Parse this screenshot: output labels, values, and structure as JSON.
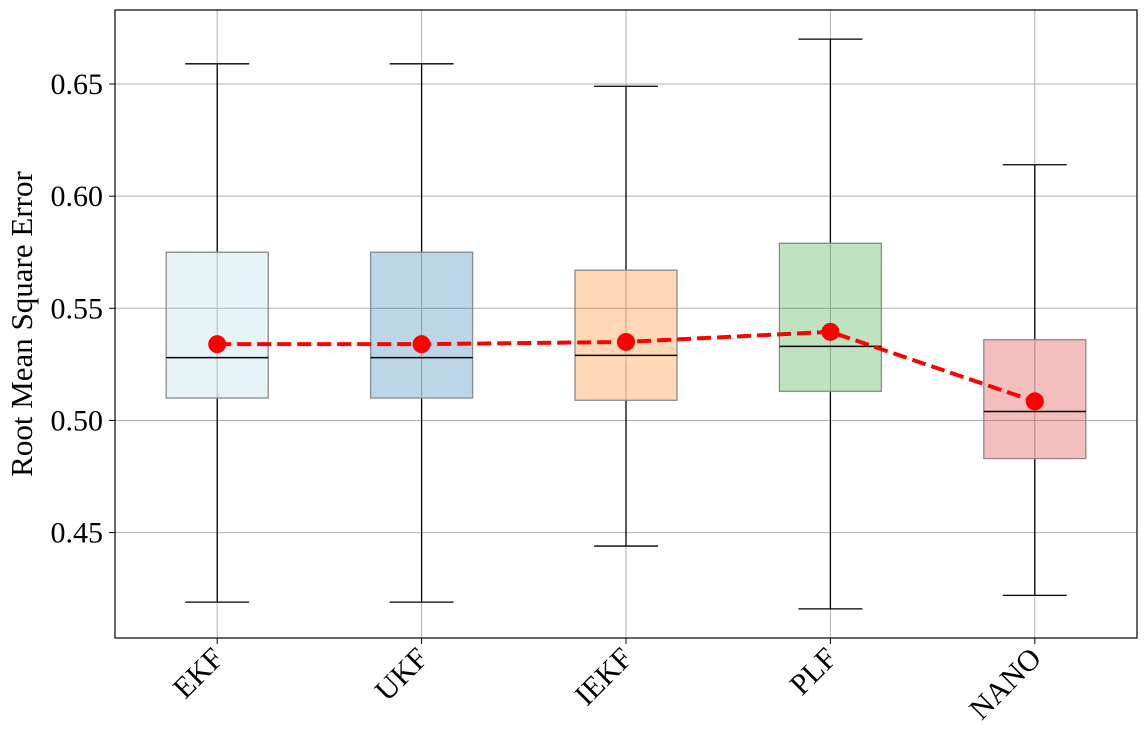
{
  "chart_data": {
    "type": "box",
    "title": "",
    "xlabel": "",
    "ylabel": "Root Mean Square Error",
    "ylim": [
      0.403,
      0.683
    ],
    "yticks": [
      0.45,
      0.5,
      0.55,
      0.6,
      0.65
    ],
    "ytick_labels": [
      "0.45",
      "0.50",
      "0.55",
      "0.60",
      "0.65"
    ],
    "grid": true,
    "categories": [
      "EKF",
      "UKF",
      "IEKF",
      "PLF",
      "NANO"
    ],
    "boxes": [
      {
        "category": "EKF",
        "whisker_low": 0.419,
        "q1": 0.51,
        "median": 0.528,
        "q3": 0.575,
        "whisker_high": 0.659,
        "color": "#add8e6"
      },
      {
        "category": "UKF",
        "whisker_low": 0.419,
        "q1": 0.51,
        "median": 0.528,
        "q3": 0.575,
        "whisker_high": 0.659,
        "color": "#1f77b4"
      },
      {
        "category": "IEKF",
        "whisker_low": 0.444,
        "q1": 0.509,
        "median": 0.529,
        "q3": 0.567,
        "whisker_high": 0.649,
        "color": "#ff7f0e"
      },
      {
        "category": "PLF",
        "whisker_low": 0.416,
        "q1": 0.513,
        "median": 0.533,
        "q3": 0.579,
        "whisker_high": 0.67,
        "color": "#2ca02c"
      },
      {
        "category": "NANO",
        "whisker_low": 0.422,
        "q1": 0.483,
        "median": 0.504,
        "q3": 0.536,
        "whisker_high": 0.614,
        "color": "#d62728"
      }
    ],
    "mean_series": {
      "values": [
        0.534,
        0.534,
        0.535,
        0.5395,
        0.5085
      ],
      "color": "#ff0000",
      "line_style": "dashed",
      "marker": "circle"
    }
  }
}
